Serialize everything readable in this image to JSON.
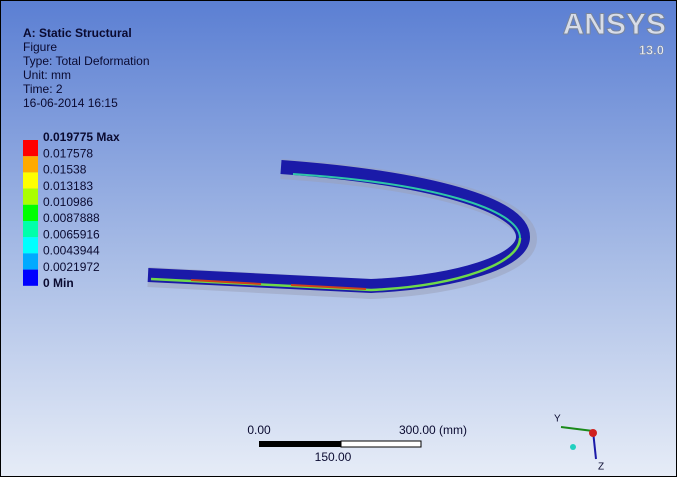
{
  "header": {
    "title": "A: Static Structural",
    "lines": [
      "Figure",
      "Type: Total Deformation",
      "Unit: mm",
      "Time: 2",
      "16-06-2014 16:15"
    ]
  },
  "legend": {
    "labels": [
      "0.019775 Max",
      "0.017578",
      "0.01538",
      "0.013183",
      "0.010986",
      "0.0087888",
      "0.0065916",
      "0.0043944",
      "0.0021972",
      "0 Min"
    ],
    "colors": [
      "#ff0000",
      "#ffaa00",
      "#ffff00",
      "#aaff00",
      "#00ff00",
      "#00ffaa",
      "#00ffff",
      "#00aaff",
      "#0000ff"
    ]
  },
  "logo": {
    "name": "ANSYS",
    "version": "13.0"
  },
  "scale_bar": {
    "start": "0.00",
    "end": "300.00 (mm)",
    "middle": "150.00"
  },
  "triad": {
    "y": "Y",
    "z": "Z"
  }
}
